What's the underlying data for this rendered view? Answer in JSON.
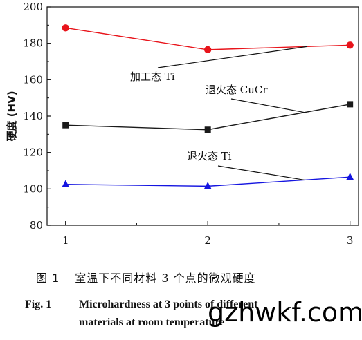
{
  "chart_data": {
    "type": "line",
    "x": [
      1,
      2,
      3
    ],
    "xlim": [
      0.87,
      3.06
    ],
    "ylim": [
      80,
      200
    ],
    "xticks": [
      "1",
      "2",
      "3"
    ],
    "yticks": [
      "80",
      "100",
      "120",
      "140",
      "160",
      "180",
      "200"
    ],
    "ylabel": "硬度 (HV)",
    "xlabel": "",
    "grid": false,
    "series": [
      {
        "name": "加工态 Ti",
        "values": [
          188.5,
          176.5,
          179.0
        ],
        "color": "#e8141b",
        "marker": "circle"
      },
      {
        "name": "退火态 CuCr",
        "values": [
          135.0,
          132.5,
          146.5
        ],
        "color": "#1a1a1a",
        "marker": "square"
      },
      {
        "name": "退火态 Ti",
        "values": [
          102.5,
          101.5,
          106.5
        ],
        "color": "#1515e0",
        "marker": "triangle"
      }
    ],
    "annotations": [
      {
        "text": "加工态 Ti",
        "target_series": 0,
        "target_x": 2.7
      },
      {
        "text": "退火态 CuCr",
        "target_series": 1,
        "target_x": 2.68
      },
      {
        "text": "退火态 Ti",
        "target_series": 2,
        "target_x": 2.68
      }
    ]
  },
  "caption_cn": {
    "label": "图 1",
    "text": "室温下不同材料 3 个点的微观硬度"
  },
  "caption_en": {
    "label": "Fig. 1",
    "line1": "Microhardness at 3 points of different",
    "line2": "materials at room temperature"
  },
  "watermark": "gzhwkf.com"
}
